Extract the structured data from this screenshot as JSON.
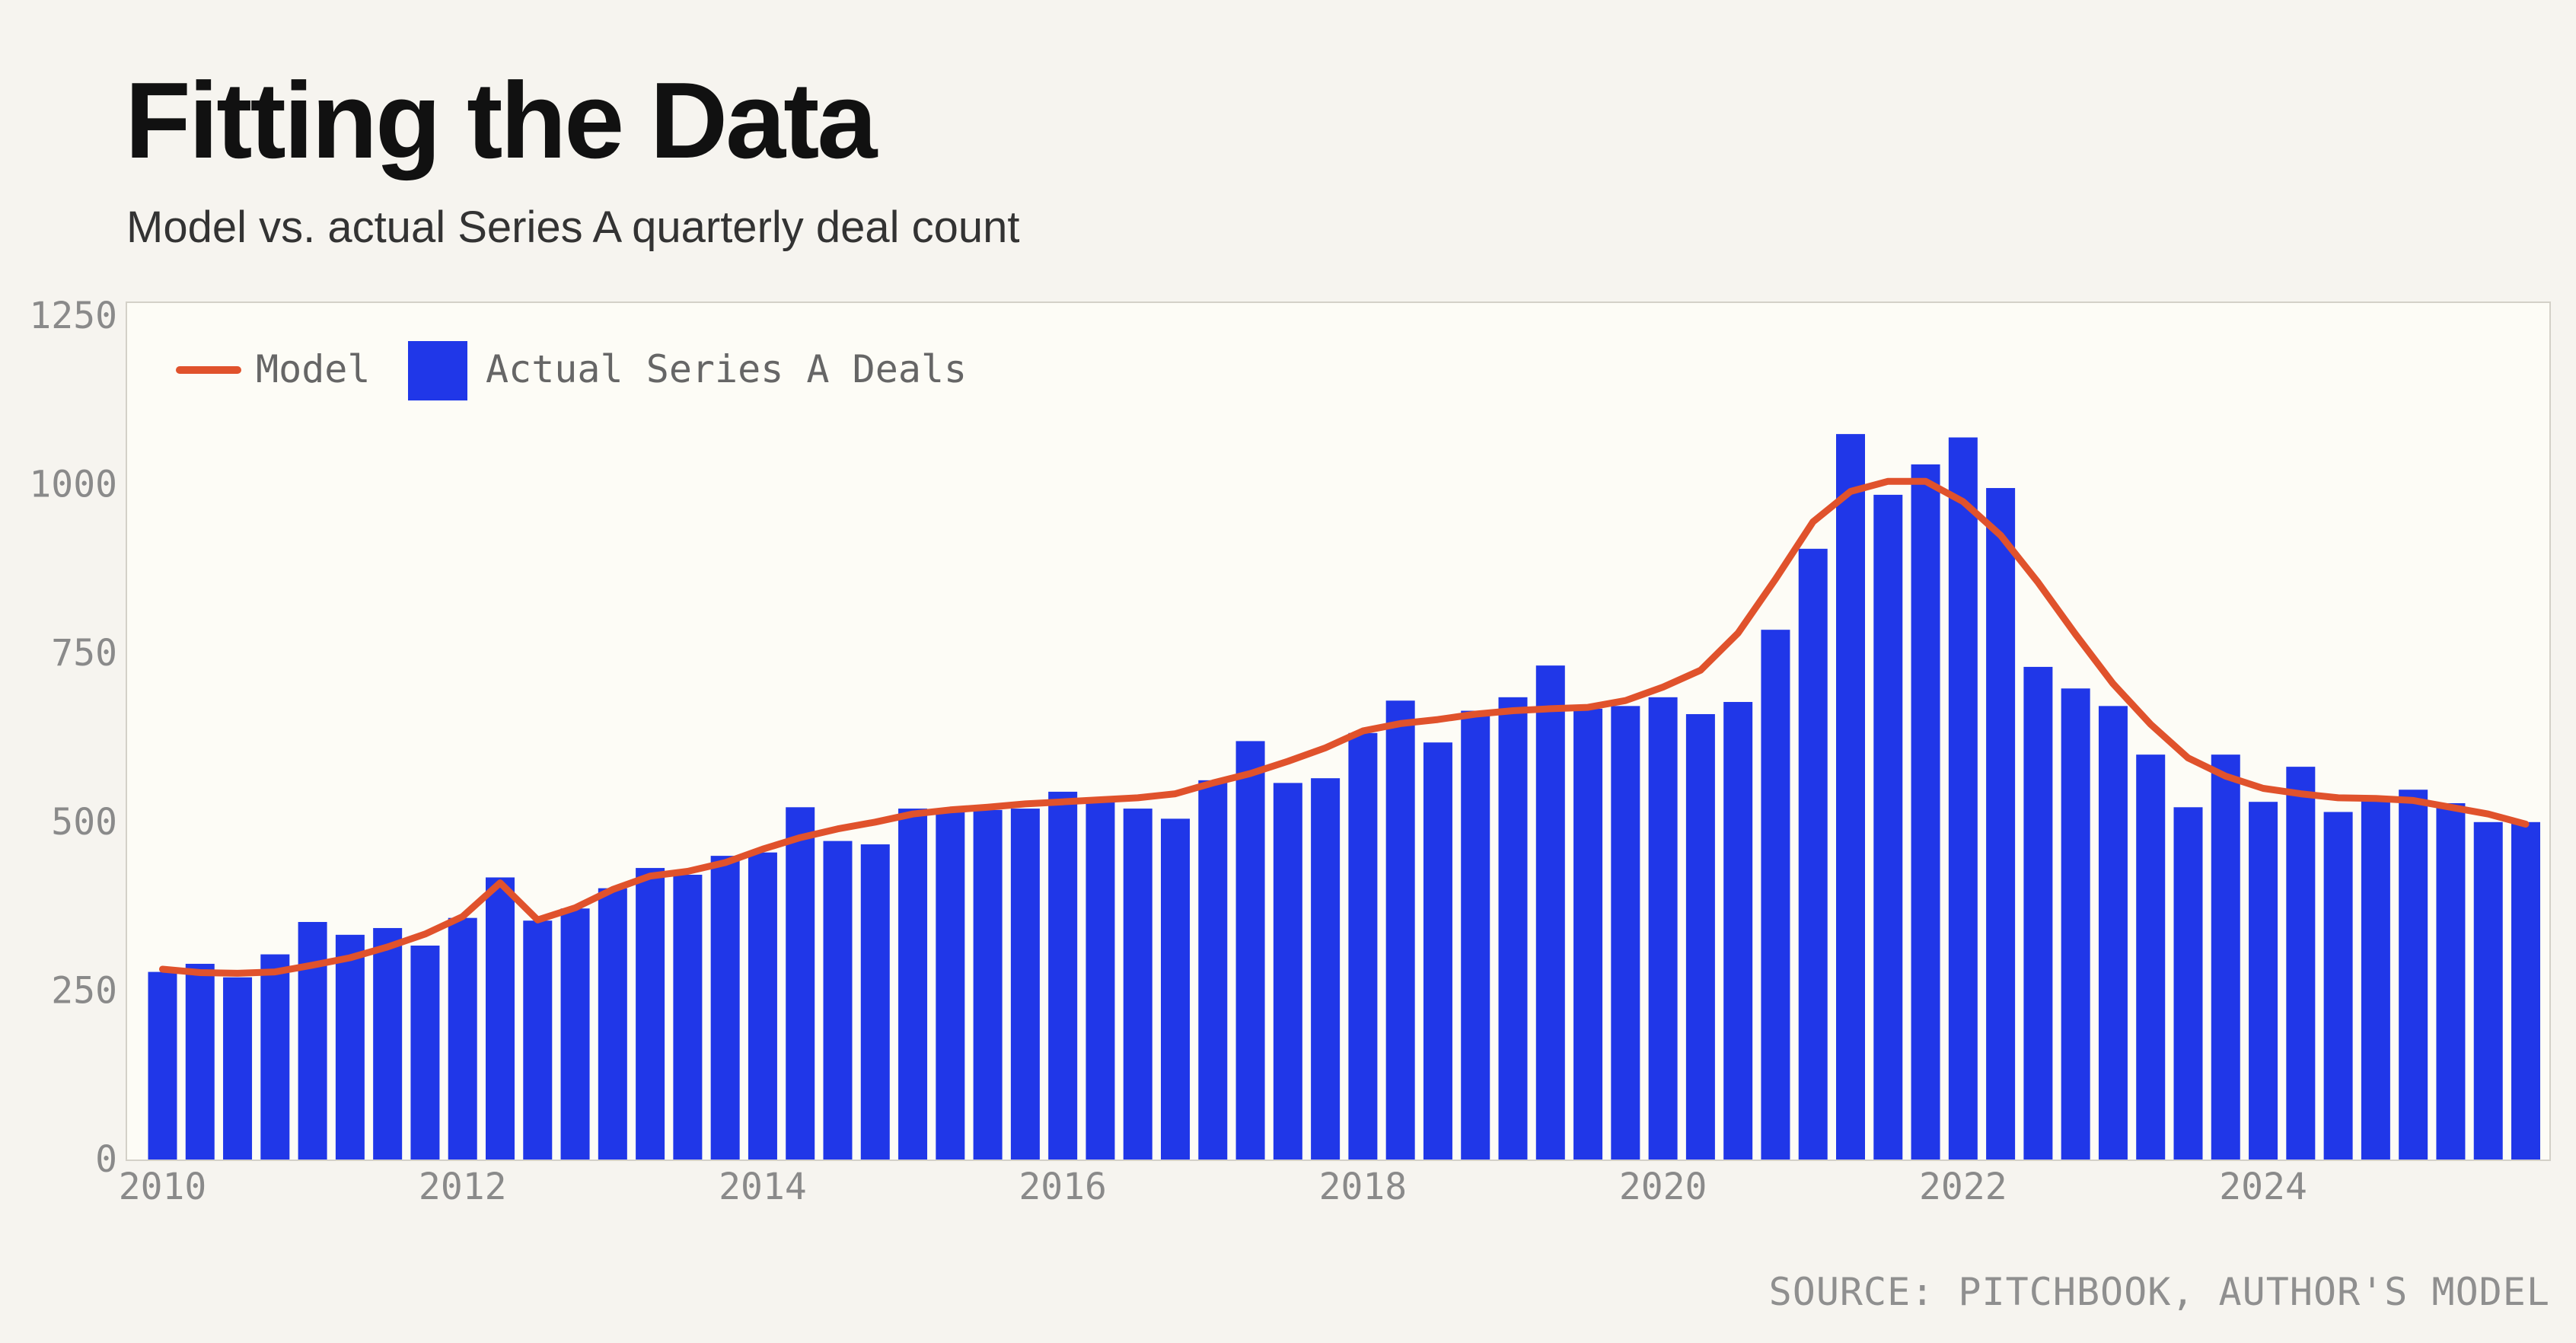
{
  "title": "Fitting the Data",
  "subtitle": "Model vs. actual Series A quarterly deal count",
  "source": "SOURCE: PITCHBOOK, AUTHOR'S MODEL",
  "colors": {
    "bars": "#2037e8",
    "model_line": "#e0522c",
    "plot_background": "#fdfcf6",
    "page_background": "#f6f4ef"
  },
  "chart_data": {
    "type": "bar",
    "title": "Fitting the Data",
    "subtitle": "Model vs. actual Series A quarterly deal count",
    "legend_placement": "top-left",
    "grid": false,
    "ylim": [
      0,
      1250
    ],
    "yticks": [
      "0",
      "250",
      "500",
      "750",
      "1000",
      "1250"
    ],
    "xticks": [
      "2010",
      "2012",
      "2014",
      "2016",
      "2018",
      "2020",
      "2022",
      "2024"
    ],
    "x_start": "2010-Q1",
    "x_end": "2025-Q4",
    "frequency": "quarterly",
    "series": [
      {
        "name": "Actual Series A Deals",
        "type": "bar",
        "values": [
          278,
          290,
          270,
          304,
          352,
          333,
          343,
          317,
          358,
          418,
          354,
          372,
          402,
          432,
          422,
          450,
          455,
          522,
          472,
          467,
          520,
          520,
          518,
          520,
          545,
          532,
          520,
          505,
          562,
          620,
          558,
          565,
          632,
          680,
          618,
          665,
          685,
          732,
          668,
          672,
          685,
          660,
          678,
          785,
          905,
          1075,
          985,
          1030,
          1070,
          995,
          730,
          698,
          672,
          600,
          522,
          600,
          530,
          582,
          515,
          535,
          548,
          528,
          500,
          500
        ]
      },
      {
        "name": "Model",
        "type": "line",
        "values": [
          282,
          277,
          276,
          278,
          288,
          299,
          315,
          334,
          360,
          410,
          355,
          373,
          400,
          420,
          427,
          440,
          460,
          477,
          490,
          500,
          512,
          518,
          522,
          527,
          530,
          533,
          536,
          542,
          558,
          572,
          590,
          610,
          635,
          646,
          652,
          660,
          665,
          668,
          670,
          680,
          700,
          725,
          780,
          860,
          945,
          990,
          1005,
          1005,
          975,
          925,
          855,
          778,
          705,
          645,
          595,
          568,
          550,
          542,
          536,
          535,
          532,
          522,
          512,
          497
        ]
      }
    ]
  }
}
